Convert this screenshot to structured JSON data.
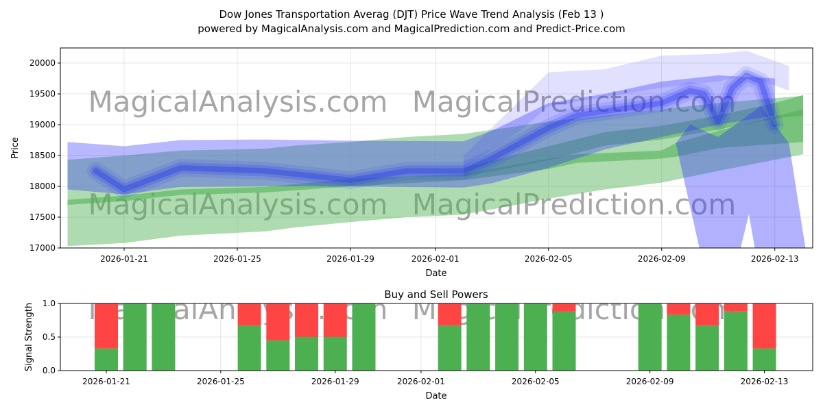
{
  "title_line1": "Dow Jones Transportation Averag (DJT) Price Wave Trend Analysis (Feb 13 )",
  "title_line2": "powered by MagicalAnalysis.com and MagicalPrediction.com and Predict-Price.com",
  "watermarks": [
    "MagicalAnalysis.com",
    "MagicalPrediction.com"
  ],
  "chart_data": [
    {
      "type": "area",
      "title": "",
      "xlabel": "Date",
      "ylabel": "Price",
      "ylim": [
        17000,
        20300
      ],
      "yticks": [
        17000,
        17500,
        18000,
        18500,
        19000,
        19500,
        20000
      ],
      "xticks": [
        "2026-01-21",
        "2026-01-25",
        "2026-01-29",
        "2026-02-01",
        "2026-02-05",
        "2026-02-09",
        "2026-02-13"
      ],
      "colors": {
        "buy": "#4caf50",
        "sell": "#ff4444",
        "wave": "#3333ff"
      },
      "green_bands": [
        {
          "x": [
            "2026-01-19",
            "2026-01-21",
            "2026-01-23",
            "2026-01-26",
            "2026-01-27",
            "2026-01-29",
            "2026-01-31",
            "2026-02-02",
            "2026-02-05",
            "2026-02-07",
            "2026-02-09",
            "2026-02-11",
            "2026-02-14"
          ],
          "low": [
            17030,
            17080,
            17200,
            17270,
            17330,
            17420,
            17500,
            17540,
            17800,
            17950,
            18060,
            18250,
            18520
          ],
          "high": [
            18430,
            18500,
            18580,
            18610,
            18660,
            18720,
            18800,
            18850,
            19050,
            19150,
            19250,
            19350,
            19470
          ]
        },
        {
          "x": [
            "2026-01-19",
            "2026-01-21",
            "2026-01-23",
            "2026-01-26",
            "2026-01-29",
            "2026-02-02",
            "2026-02-05",
            "2026-02-06",
            "2026-02-09",
            "2026-02-09T12",
            "2026-02-11",
            "2026-02-14"
          ],
          "low": [
            17700,
            17760,
            17860,
            17900,
            18000,
            18100,
            18280,
            18380,
            18450,
            18480,
            18620,
            18720
          ],
          "high": [
            17780,
            17850,
            17950,
            17990,
            18120,
            18200,
            18450,
            18520,
            18580,
            18700,
            18900,
            19250
          ]
        },
        {
          "x": [
            "2026-02-02",
            "2026-02-05",
            "2026-02-07",
            "2026-02-09",
            "2026-02-11",
            "2026-02-13",
            "2026-02-14"
          ],
          "low": [
            18150,
            18420,
            18660,
            18760,
            18920,
            19100,
            19150
          ],
          "high": [
            18300,
            18650,
            18880,
            18980,
            19150,
            19350,
            19480
          ]
        }
      ],
      "blue_bands": [
        {
          "x": [
            "2026-01-19",
            "2026-01-21",
            "2026-01-23",
            "2026-01-26",
            "2026-01-29",
            "2026-02-02",
            "2026-02-03",
            "2026-02-05",
            "2026-02-07",
            "2026-02-09",
            "2026-02-11",
            "2026-02-13"
          ],
          "low": [
            17950,
            17870,
            17990,
            18000,
            18000,
            17980,
            18050,
            18300,
            18600,
            18800,
            19000,
            19150
          ],
          "high": [
            18720,
            18650,
            18750,
            18760,
            18740,
            18730,
            18900,
            19350,
            19500,
            19700,
            19800,
            19750
          ]
        },
        {
          "x": [
            "2026-02-02",
            "2026-02-04",
            "2026-02-05",
            "2026-02-07",
            "2026-02-09",
            "2026-02-11",
            "2026-02-12",
            "2026-02-13T12"
          ],
          "low": [
            18300,
            18900,
            19300,
            19450,
            19600,
            19700,
            19800,
            19550
          ],
          "high": [
            18500,
            19400,
            19850,
            19900,
            20120,
            20150,
            20200,
            19950
          ]
        }
      ],
      "wave_center": {
        "x": [
          "2026-01-20",
          "2026-01-21",
          "2026-01-23",
          "2026-01-26",
          "2026-01-29",
          "2026-01-31",
          "2026-02-02",
          "2026-02-03",
          "2026-02-05",
          "2026-02-06",
          "2026-02-09",
          "2026-02-10",
          "2026-02-10T12",
          "2026-02-11",
          "2026-02-11T12",
          "2026-02-12",
          "2026-02-12T12",
          "2026-02-13"
        ],
        "y": [
          18250,
          17950,
          18300,
          18250,
          18100,
          18250,
          18250,
          18450,
          18950,
          19150,
          19350,
          19550,
          19500,
          19050,
          19600,
          19800,
          19700,
          19000
        ]
      },
      "wave_tail": {
        "x": [
          "2026-02-09T12",
          "2026-02-10T08",
          "2026-02-11T19",
          "2026-02-12T02",
          "2026-02-12T07",
          "2026-02-14T02",
          "2026-02-13T12",
          "2026-02-12T12",
          "2026-02-11T00",
          "2026-02-10T00"
        ],
        "y": [
          18700,
          17000,
          17000,
          17550,
          17000,
          17000,
          18700,
          19300,
          18800,
          19000
        ]
      }
    },
    {
      "type": "bar",
      "title": "Buy and Sell Powers",
      "xlabel": "Date",
      "ylabel": "Signal Strength",
      "ylim": [
        0,
        1
      ],
      "yticks": [
        "0.0",
        "0.5",
        "1.0"
      ],
      "xticks": [
        "2026-01-21",
        "2026-01-25",
        "2026-01-29",
        "2026-02-01",
        "2026-02-05",
        "2026-02-09",
        "2026-02-13"
      ],
      "categories": [
        "2026-01-21",
        "2026-01-22",
        "2026-01-23",
        "2026-01-26",
        "2026-01-27",
        "2026-01-28",
        "2026-01-29",
        "2026-01-30",
        "2026-02-02",
        "2026-02-03",
        "2026-02-04",
        "2026-02-05",
        "2026-02-06",
        "2026-02-09",
        "2026-02-10",
        "2026-02-11",
        "2026-02-12",
        "2026-02-13"
      ],
      "series": [
        {
          "name": "Buy",
          "values": [
            0.33,
            1,
            1,
            0.67,
            0.45,
            0.5,
            0.5,
            1,
            0.67,
            1,
            1,
            1,
            0.88,
            1,
            0.83,
            0.67,
            0.88,
            0.33
          ]
        },
        {
          "name": "Sell",
          "values": [
            0.67,
            0,
            0,
            0.33,
            0.55,
            0.5,
            0.5,
            0,
            0.33,
            0,
            0,
            0,
            0.12,
            0,
            0.17,
            0.33,
            0.12,
            0.67
          ]
        }
      ]
    }
  ]
}
